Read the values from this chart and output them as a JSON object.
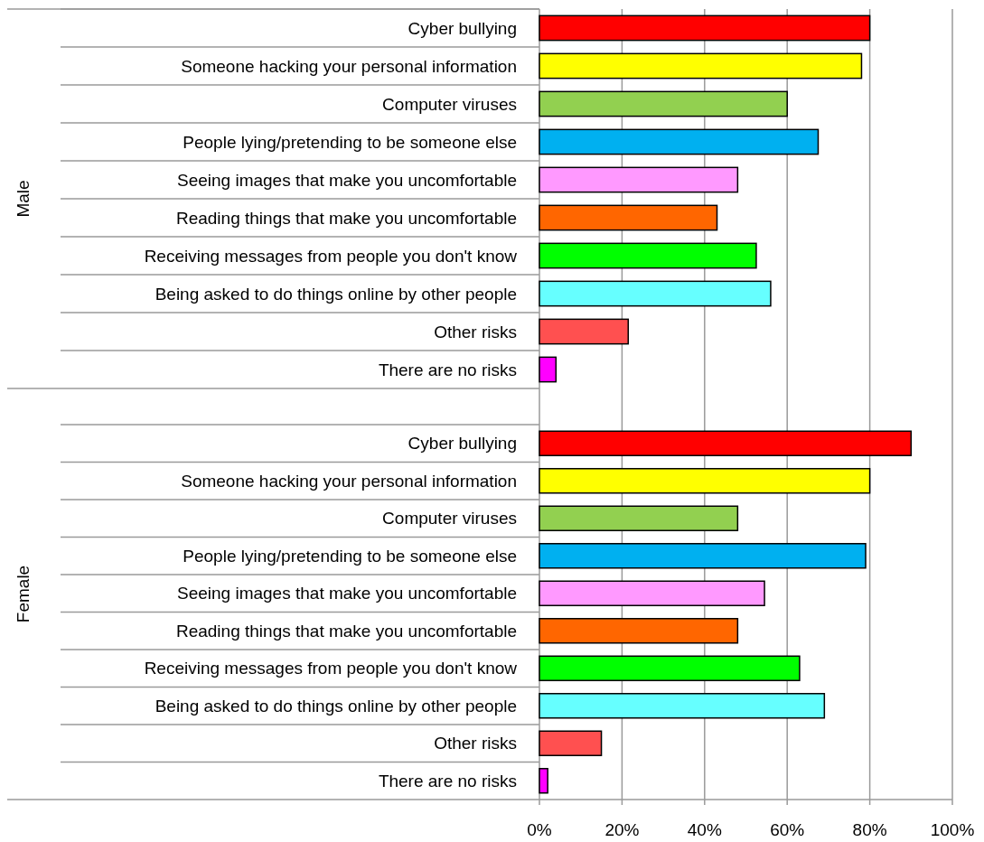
{
  "chart_data": [
    {
      "type": "bar",
      "orientation": "horizontal",
      "ylabel": "Male",
      "tick_labels": "y",
      "grid": "x",
      "categories": [
        "Cyber bullying",
        "Someone hacking your personal information",
        "Computer viruses",
        "People lying/pretending to be someone else",
        "Seeing images that make you uncomfortable",
        "Reading things that make you uncomfortable",
        "Receiving messages from people you don't know",
        "Being asked to do things online by other people",
        "Other risks",
        "There are no risks"
      ],
      "values": [
        80,
        78,
        60,
        67.5,
        48,
        43,
        52.5,
        56,
        21.5,
        4
      ],
      "colors": [
        "#ff0000",
        "#ffff00",
        "#92d050",
        "#00b0f0",
        "#ff99ff",
        "#ff6600",
        "#00ff00",
        "#66ffff",
        "#ff5050",
        "#ff00ff"
      ],
      "xlim": [
        0,
        100
      ],
      "xticks": [
        0,
        20,
        40,
        60,
        80,
        100
      ]
    },
    {
      "type": "bar",
      "orientation": "horizontal",
      "ylabel": "Female",
      "grid": "x",
      "categories": [
        "Cyber bullying",
        "Someone hacking your personal information",
        "Computer viruses",
        "People lying/pretending to be someone else",
        "Seeing images that make you uncomfortable",
        "Reading things that make you uncomfortable",
        "Receiving messages from people you don't know",
        "Being asked to do things online by other people",
        "Other risks",
        "There are no risks"
      ],
      "values": [
        90,
        80,
        48,
        79,
        54.5,
        48,
        63,
        69,
        15,
        2
      ],
      "colors": [
        "#ff0000",
        "#ffff00",
        "#92d050",
        "#00b0f0",
        "#ff99ff",
        "#ff6600",
        "#00ff00",
        "#66ffff",
        "#ff5050",
        "#ff00ff"
      ],
      "xlim": [
        0,
        100
      ],
      "xticks": [
        {
          "value": 0,
          "label": "0%"
        },
        {
          "value": 20,
          "label": "20%"
        },
        {
          "value": 40,
          "label": "40%"
        },
        {
          "value": 60,
          "label": "60%"
        },
        {
          "value": 80,
          "label": "80%"
        },
        {
          "value": 100,
          "label": "100%"
        }
      ]
    }
  ]
}
